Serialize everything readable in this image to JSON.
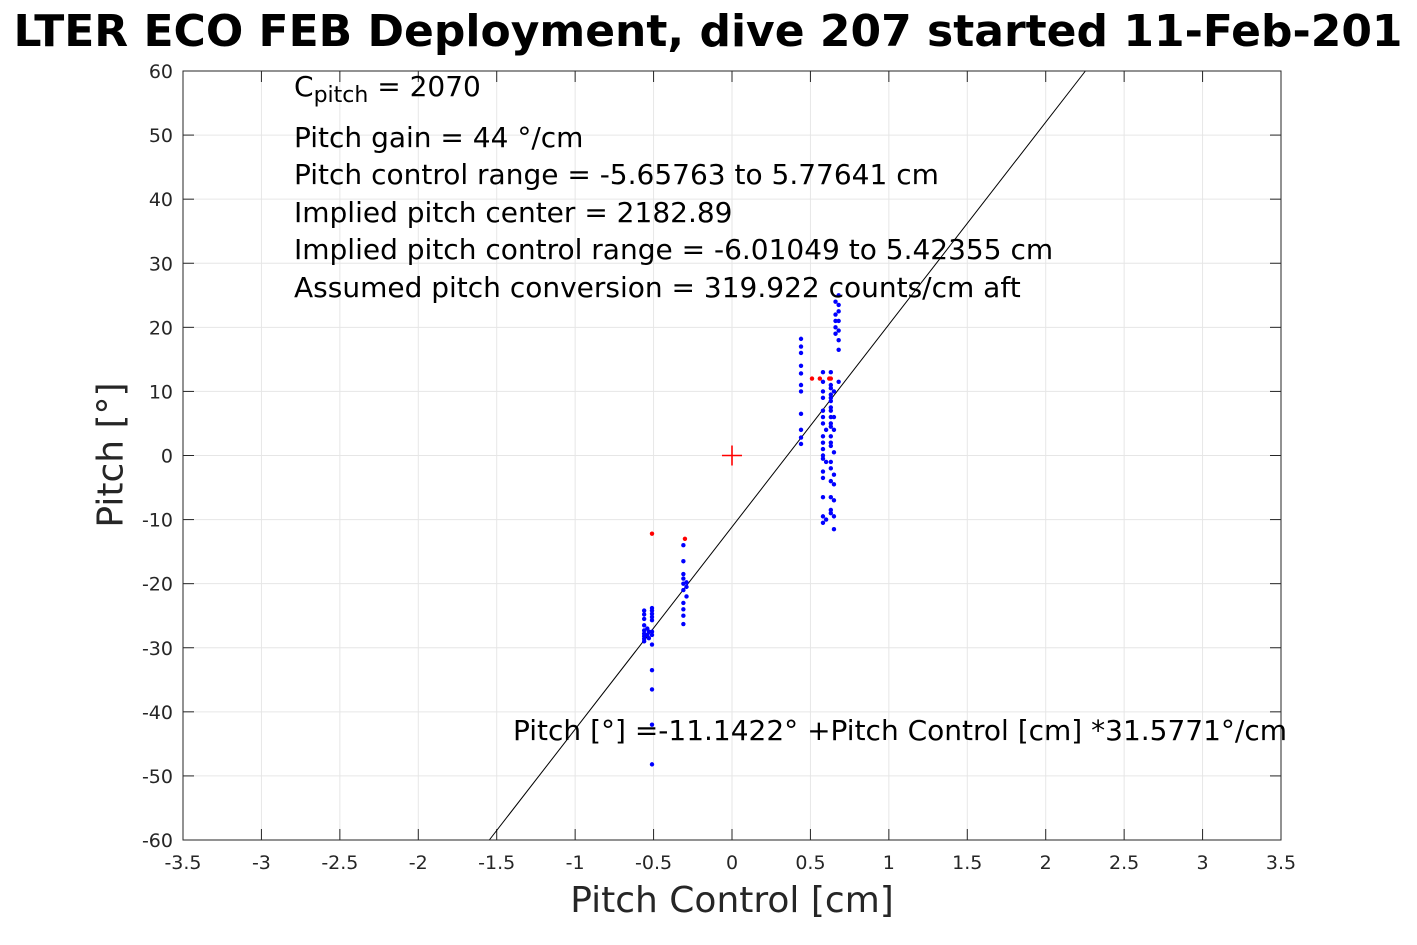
{
  "chart_data": {
    "type": "scatter",
    "title": "LTER ECO FEB Deployment, dive 207 started 11-Feb-201",
    "xlabel": "Pitch Control [cm]",
    "ylabel": "Pitch [°]",
    "xlim": [
      -3.5,
      3.5
    ],
    "ylim": [
      -60,
      60
    ],
    "x_ticks": [
      "-3.5",
      "-3",
      "-2.5",
      "-2",
      "-1.5",
      "-1",
      "-0.5",
      "0",
      "0.5",
      "1",
      "1.5",
      "2",
      "2.5",
      "3",
      "3.5"
    ],
    "y_ticks": [
      "-60",
      "-50",
      "-40",
      "-30",
      "-20",
      "-10",
      "0",
      "10",
      "20",
      "30",
      "40",
      "50",
      "60"
    ],
    "grid": true,
    "annotations": {
      "c_pitch_label": "C",
      "c_pitch_sub": "pitch",
      "c_pitch_value": " = 2070",
      "pitch_gain": "Pitch gain = 44 °/cm",
      "pitch_control_range": "Pitch control range = -5.65763 to 5.77641 cm",
      "implied_pitch_center": "Implied pitch center = 2182.89",
      "implied_pitch_control_range": "Implied pitch control range = -6.01049 to 5.42355 cm",
      "assumed_pitch_conversion": "Assumed pitch conversion = 319.922 counts/cm aft"
    },
    "fit_equation": "Pitch [°] =-11.1422° +Pitch Control [cm] *31.5771°/cm",
    "fit": {
      "intercept": -11.1422,
      "slope": 31.5771,
      "color": "#000000"
    },
    "center_marker": {
      "x": 0,
      "y": 0,
      "color": "#ff0000"
    },
    "series": [
      {
        "color": "#0000ff",
        "points": [
          [
            -0.56,
            -24.2
          ],
          [
            -0.56,
            -24.8
          ],
          [
            -0.56,
            -25.5
          ],
          [
            -0.56,
            -26.5
          ],
          [
            -0.56,
            -27.3
          ],
          [
            -0.56,
            -27.8
          ],
          [
            -0.56,
            -28.2
          ],
          [
            -0.56,
            -28.6
          ],
          [
            -0.56,
            -29.0
          ],
          [
            -0.54,
            -27.0
          ],
          [
            -0.54,
            -28.0
          ],
          [
            -0.53,
            -27.5
          ],
          [
            -0.53,
            -28.5
          ],
          [
            -0.51,
            -23.8
          ],
          [
            -0.51,
            -24.2
          ],
          [
            -0.51,
            -24.7
          ],
          [
            -0.51,
            -25.2
          ],
          [
            -0.51,
            -25.7
          ],
          [
            -0.51,
            -27.5
          ],
          [
            -0.51,
            -28.0
          ],
          [
            -0.51,
            -29.5
          ],
          [
            -0.51,
            -33.5
          ],
          [
            -0.51,
            -36.5
          ],
          [
            -0.51,
            -42.0
          ],
          [
            -0.51,
            -48.2
          ],
          [
            -0.31,
            -14.0
          ],
          [
            -0.31,
            -16.5
          ],
          [
            -0.31,
            -18.5
          ],
          [
            -0.31,
            -19.2
          ],
          [
            -0.31,
            -20.0
          ],
          [
            -0.31,
            -21.0
          ],
          [
            -0.31,
            -23.0
          ],
          [
            -0.31,
            -24.0
          ],
          [
            -0.31,
            -25.0
          ],
          [
            -0.31,
            -26.3
          ],
          [
            -0.29,
            -19.8
          ],
          [
            -0.29,
            -20.5
          ],
          [
            -0.29,
            -22.0
          ],
          [
            0.44,
            18.2
          ],
          [
            0.44,
            17.0
          ],
          [
            0.44,
            16.0
          ],
          [
            0.44,
            14.0
          ],
          [
            0.44,
            12.8
          ],
          [
            0.44,
            11.0
          ],
          [
            0.44,
            10.0
          ],
          [
            0.44,
            6.5
          ],
          [
            0.44,
            4.0
          ],
          [
            0.44,
            2.8
          ],
          [
            0.44,
            1.8
          ],
          [
            0.58,
            13.0
          ],
          [
            0.58,
            11.5
          ],
          [
            0.58,
            10.0
          ],
          [
            0.58,
            9.0
          ],
          [
            0.58,
            7.0
          ],
          [
            0.58,
            6.0
          ],
          [
            0.58,
            5.0
          ],
          [
            0.58,
            3.0
          ],
          [
            0.58,
            2.0
          ],
          [
            0.58,
            1.0
          ],
          [
            0.58,
            0.0
          ],
          [
            0.58,
            -0.5
          ],
          [
            0.58,
            -2.5
          ],
          [
            0.58,
            -3.5
          ],
          [
            0.58,
            -6.5
          ],
          [
            0.58,
            -9.5
          ],
          [
            0.58,
            -10.5
          ],
          [
            0.6,
            4.0
          ],
          [
            0.6,
            -1.0
          ],
          [
            0.6,
            -10.0
          ],
          [
            0.63,
            13.0
          ],
          [
            0.63,
            11.0
          ],
          [
            0.63,
            10.5
          ],
          [
            0.63,
            9.5
          ],
          [
            0.63,
            9.0
          ],
          [
            0.63,
            8.5
          ],
          [
            0.63,
            7.5
          ],
          [
            0.63,
            7.0
          ],
          [
            0.63,
            6.0
          ],
          [
            0.63,
            5.0
          ],
          [
            0.63,
            4.5
          ],
          [
            0.63,
            3.0
          ],
          [
            0.63,
            2.0
          ],
          [
            0.63,
            1.5
          ],
          [
            0.63,
            -1.0
          ],
          [
            0.63,
            -2.0
          ],
          [
            0.63,
            -4.0
          ],
          [
            0.63,
            -6.5
          ],
          [
            0.63,
            -8.5
          ],
          [
            0.63,
            -9.0
          ],
          [
            0.65,
            10.0
          ],
          [
            0.65,
            6.0
          ],
          [
            0.65,
            4.0
          ],
          [
            0.65,
            0.5
          ],
          [
            0.65,
            -3.0
          ],
          [
            0.65,
            -4.5
          ],
          [
            0.65,
            -7.0
          ],
          [
            0.65,
            -9.5
          ],
          [
            0.65,
            -11.5
          ],
          [
            0.66,
            24.0
          ],
          [
            0.66,
            22.0
          ],
          [
            0.66,
            21.0
          ],
          [
            0.66,
            20.0
          ],
          [
            0.66,
            19.0
          ],
          [
            0.68,
            25.0
          ],
          [
            0.68,
            23.5
          ],
          [
            0.68,
            22.5
          ],
          [
            0.68,
            21.0
          ],
          [
            0.68,
            19.5
          ],
          [
            0.68,
            18.0
          ],
          [
            0.68,
            16.5
          ],
          [
            0.68,
            11.5
          ]
        ]
      },
      {
        "color": "#ff0000",
        "points": [
          [
            -0.51,
            -12.2
          ],
          [
            -0.3,
            -13.0
          ],
          [
            0.51,
            12.0
          ],
          [
            0.56,
            12.0
          ],
          [
            0.62,
            12.0
          ],
          [
            0.63,
            12.0
          ]
        ]
      }
    ]
  }
}
